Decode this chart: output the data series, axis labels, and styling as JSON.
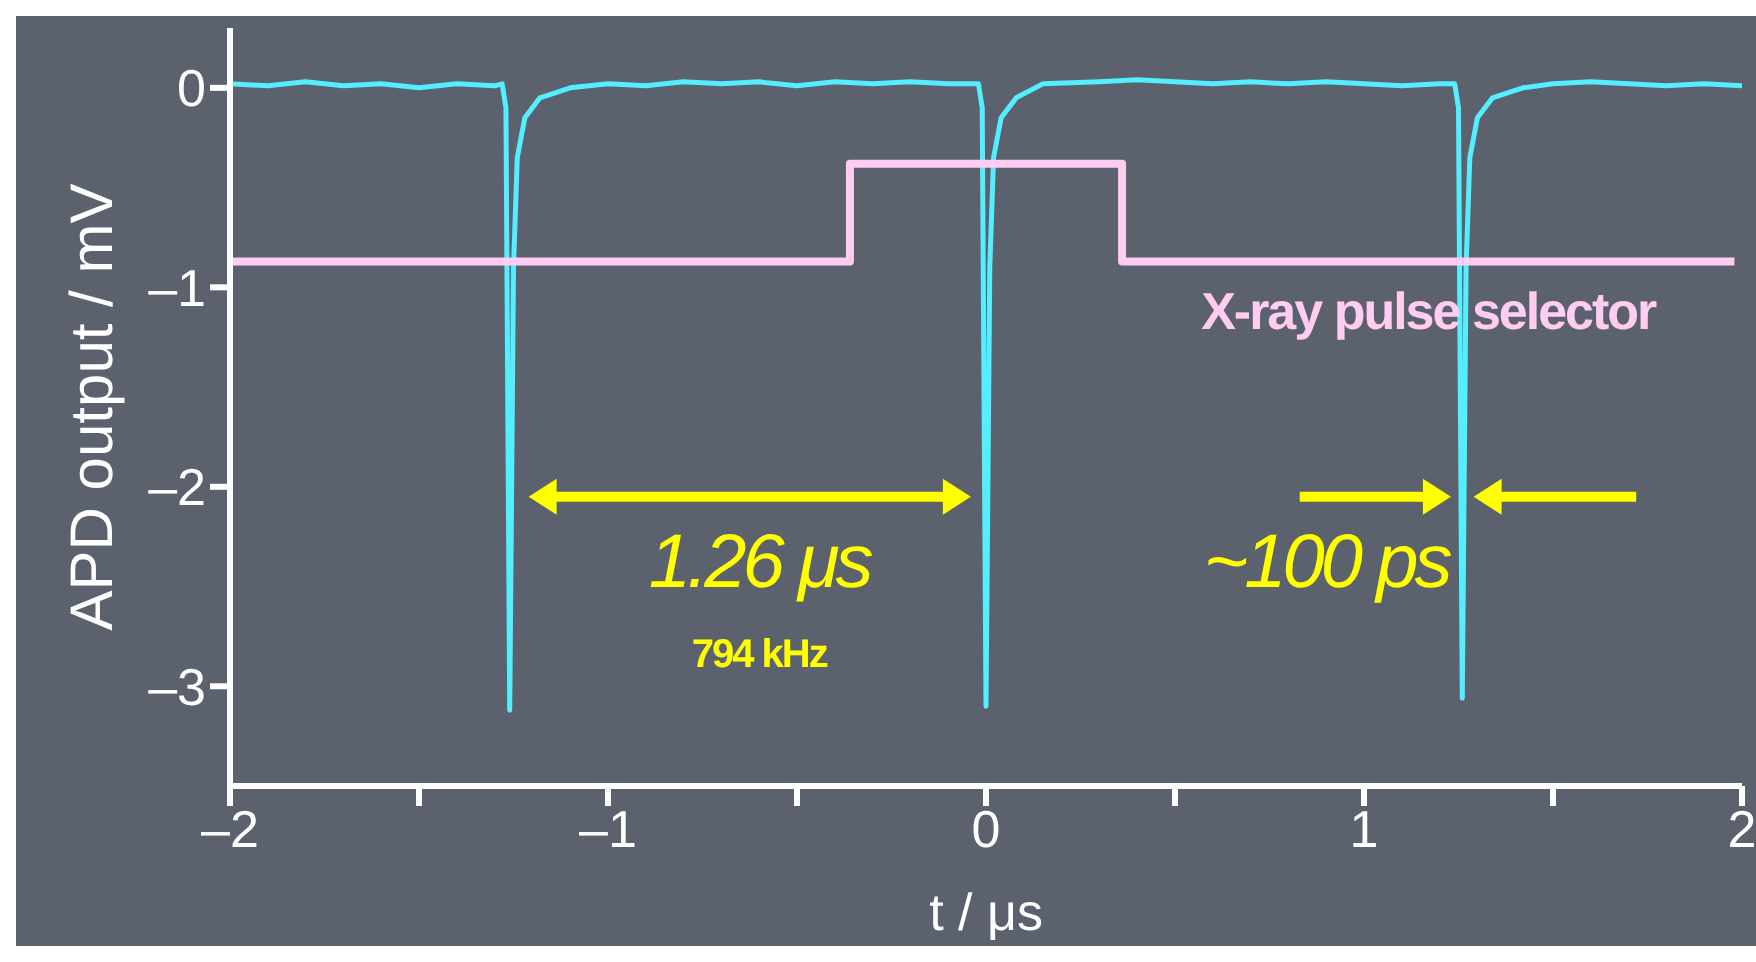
{
  "chart_data": {
    "type": "line",
    "xlabel": "t / μs",
    "ylabel": "APD output / mV",
    "xlim": [
      -2,
      2
    ],
    "ylim": [
      -3.5,
      0.3
    ],
    "xticks": [
      {
        "value": -2,
        "label": "–2"
      },
      {
        "value": -1.5,
        "label": null
      },
      {
        "value": -1,
        "label": "–1"
      },
      {
        "value": -0.5,
        "label": null
      },
      0,
      {
        "value": 0.5,
        "label": null
      },
      1,
      {
        "value": 1.5,
        "label": null
      },
      2
    ],
    "yticks": [
      0,
      {
        "value": -1,
        "label": "–1"
      },
      {
        "value": -2,
        "label": "–2"
      },
      {
        "value": -3,
        "label": "–3"
      }
    ],
    "marker": "none",
    "line_style": "solid",
    "series": [
      {
        "color": "#55eeff",
        "x": [
          -2,
          -1.9,
          -1.8,
          -1.7,
          -1.6,
          -1.5,
          -1.4,
          -1.3,
          -1.28,
          -1.27,
          -1.26,
          -1.25,
          -1.24,
          -1.22,
          -1.18,
          -1.1,
          -1.0,
          -0.9,
          -0.8,
          -0.7,
          -0.6,
          -0.5,
          -0.4,
          -0.3,
          -0.2,
          -0.1,
          -0.02,
          -0.01,
          0,
          0.01,
          0.02,
          0.04,
          0.08,
          0.15,
          0.3,
          0.4,
          0.5,
          0.6,
          0.7,
          0.8,
          0.9,
          1.0,
          1.1,
          1.2,
          1.24,
          1.25,
          1.26,
          1.27,
          1.28,
          1.3,
          1.34,
          1.42,
          1.5,
          1.6,
          1.7,
          1.8,
          1.9,
          2
        ],
        "values": [
          0.02,
          0.01,
          0.03,
          0.01,
          0.02,
          0.0,
          0.02,
          0.01,
          0.02,
          -0.1,
          -3.12,
          -0.9,
          -0.35,
          -0.15,
          -0.05,
          0.0,
          0.02,
          0.01,
          0.03,
          0.02,
          0.03,
          0.01,
          0.03,
          0.02,
          0.03,
          0.02,
          0.02,
          -0.1,
          -3.1,
          -0.9,
          -0.35,
          -0.15,
          -0.05,
          0.02,
          0.03,
          0.04,
          0.03,
          0.02,
          0.03,
          0.02,
          0.03,
          0.02,
          0.01,
          0.02,
          0.02,
          -0.1,
          -3.06,
          -0.9,
          -0.35,
          -0.15,
          -0.05,
          0.0,
          0.02,
          0.03,
          0.02,
          0.01,
          0.02,
          0.01
        ]
      },
      {
        "name": "X-ray pulse selector",
        "color": "#ffccf2",
        "x": [
          -2,
          -0.36,
          -0.36,
          0.36,
          0.36,
          1.98
        ],
        "values": [
          -0.87,
          -0.87,
          -0.38,
          -0.38,
          -0.87,
          -0.87
        ]
      }
    ],
    "annotations": [
      "1.26 μs",
      "794 kHz",
      "~100 ps"
    ]
  }
}
